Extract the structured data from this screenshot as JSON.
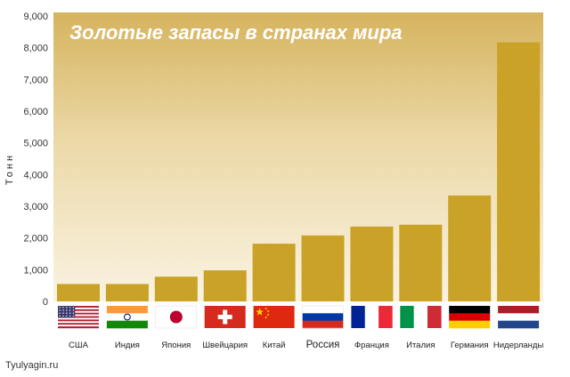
{
  "chart_data": {
    "type": "bar",
    "title": "Золотые запасы в странах мира",
    "xlabel": "",
    "ylabel": "Тонн",
    "ylim": [
      0,
      9000
    ],
    "yticks": [
      "0",
      "1,000",
      "2,000",
      "3,000",
      "4,000",
      "5,000",
      "6,000",
      "7,000",
      "8,000",
      "9,000"
    ],
    "categories": [
      "США",
      "Индия",
      "Япония",
      "Швейцария",
      "Китай",
      "Россия",
      "Франция",
      "Италия",
      "Германия",
      "Нидерланды"
    ],
    "values": [
      550,
      550,
      780,
      980,
      1820,
      2080,
      2360,
      2420,
      3340,
      8170
    ],
    "grid": false,
    "legend": "none",
    "bar_color": "#c9a227",
    "flags": [
      "usa-flag-icon",
      "india-flag-icon",
      "japan-flag-icon",
      "switzerland-flag-icon",
      "china-flag-icon",
      "russia-flag-icon",
      "france-flag-icon",
      "italy-flag-icon",
      "germany-flag-icon",
      "netherlands-flag-icon"
    ]
  },
  "watermark": "Tyulyagin.ru"
}
